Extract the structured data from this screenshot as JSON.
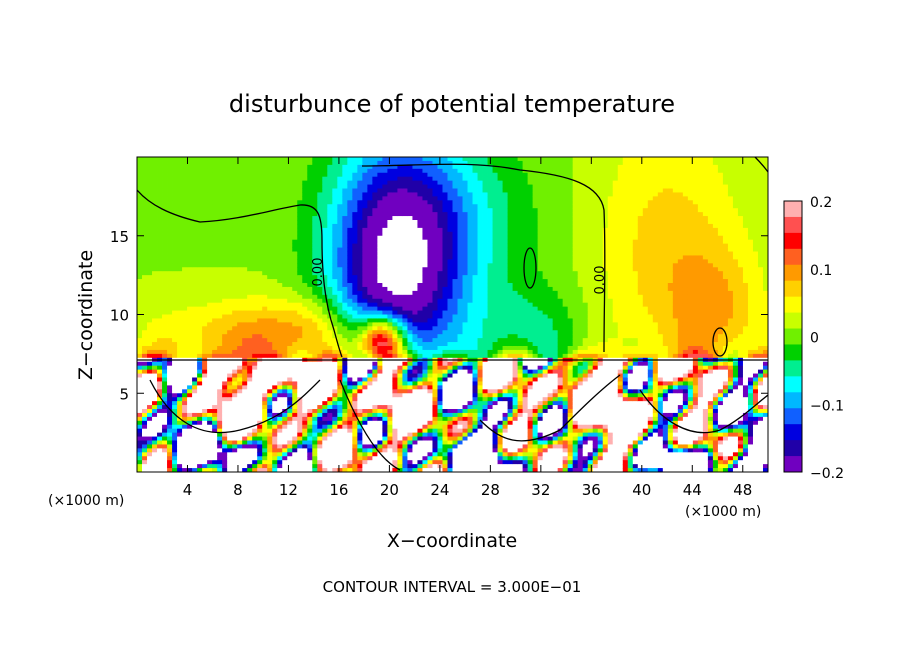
{
  "chart_data": {
    "type": "heatmap",
    "title": "disturbunce of potential temperature",
    "xlabel": "X−coordinate",
    "ylabel": "Z−coordinate",
    "x_unit": "(×1000 m)",
    "x_unit_right": "(×1000 m)",
    "x_ticks": [
      4,
      8,
      12,
      16,
      20,
      24,
      28,
      32,
      36,
      40,
      44,
      48
    ],
    "y_ticks": [
      5,
      10,
      15
    ],
    "xlim": [
      0,
      50
    ],
    "ylim": [
      0,
      20
    ],
    "contour_interval_text": "CONTOUR INTERVAL = 3.000E−01",
    "contour_labels": [
      "0.00",
      "0.00"
    ],
    "colorbar": {
      "range": [
        -0.2,
        0.2
      ],
      "tick_values": [
        0.2,
        0.1,
        0,
        -0.1,
        -0.2
      ],
      "tick_labels": [
        "0.2",
        "0.1",
        "0",
        "−0.1",
        "−0.2"
      ],
      "colors": [
        "#ffb0b0",
        "#ff5050",
        "#ff0000",
        "#ff6020",
        "#ff9a00",
        "#ffd000",
        "#ffff00",
        "#c8ff00",
        "#70f000",
        "#00d000",
        "#00ee90",
        "#00ffff",
        "#00b8ff",
        "#1060ff",
        "#0000e0",
        "#2000a8",
        "#7000c0"
      ]
    },
    "field_description_regions": {
      "upper_background_value": 0.01,
      "central_plume_min_value": -0.2,
      "central_plume_x_center": 20,
      "right_upper_value": 0.09,
      "interface_height": 7.2
    }
  }
}
